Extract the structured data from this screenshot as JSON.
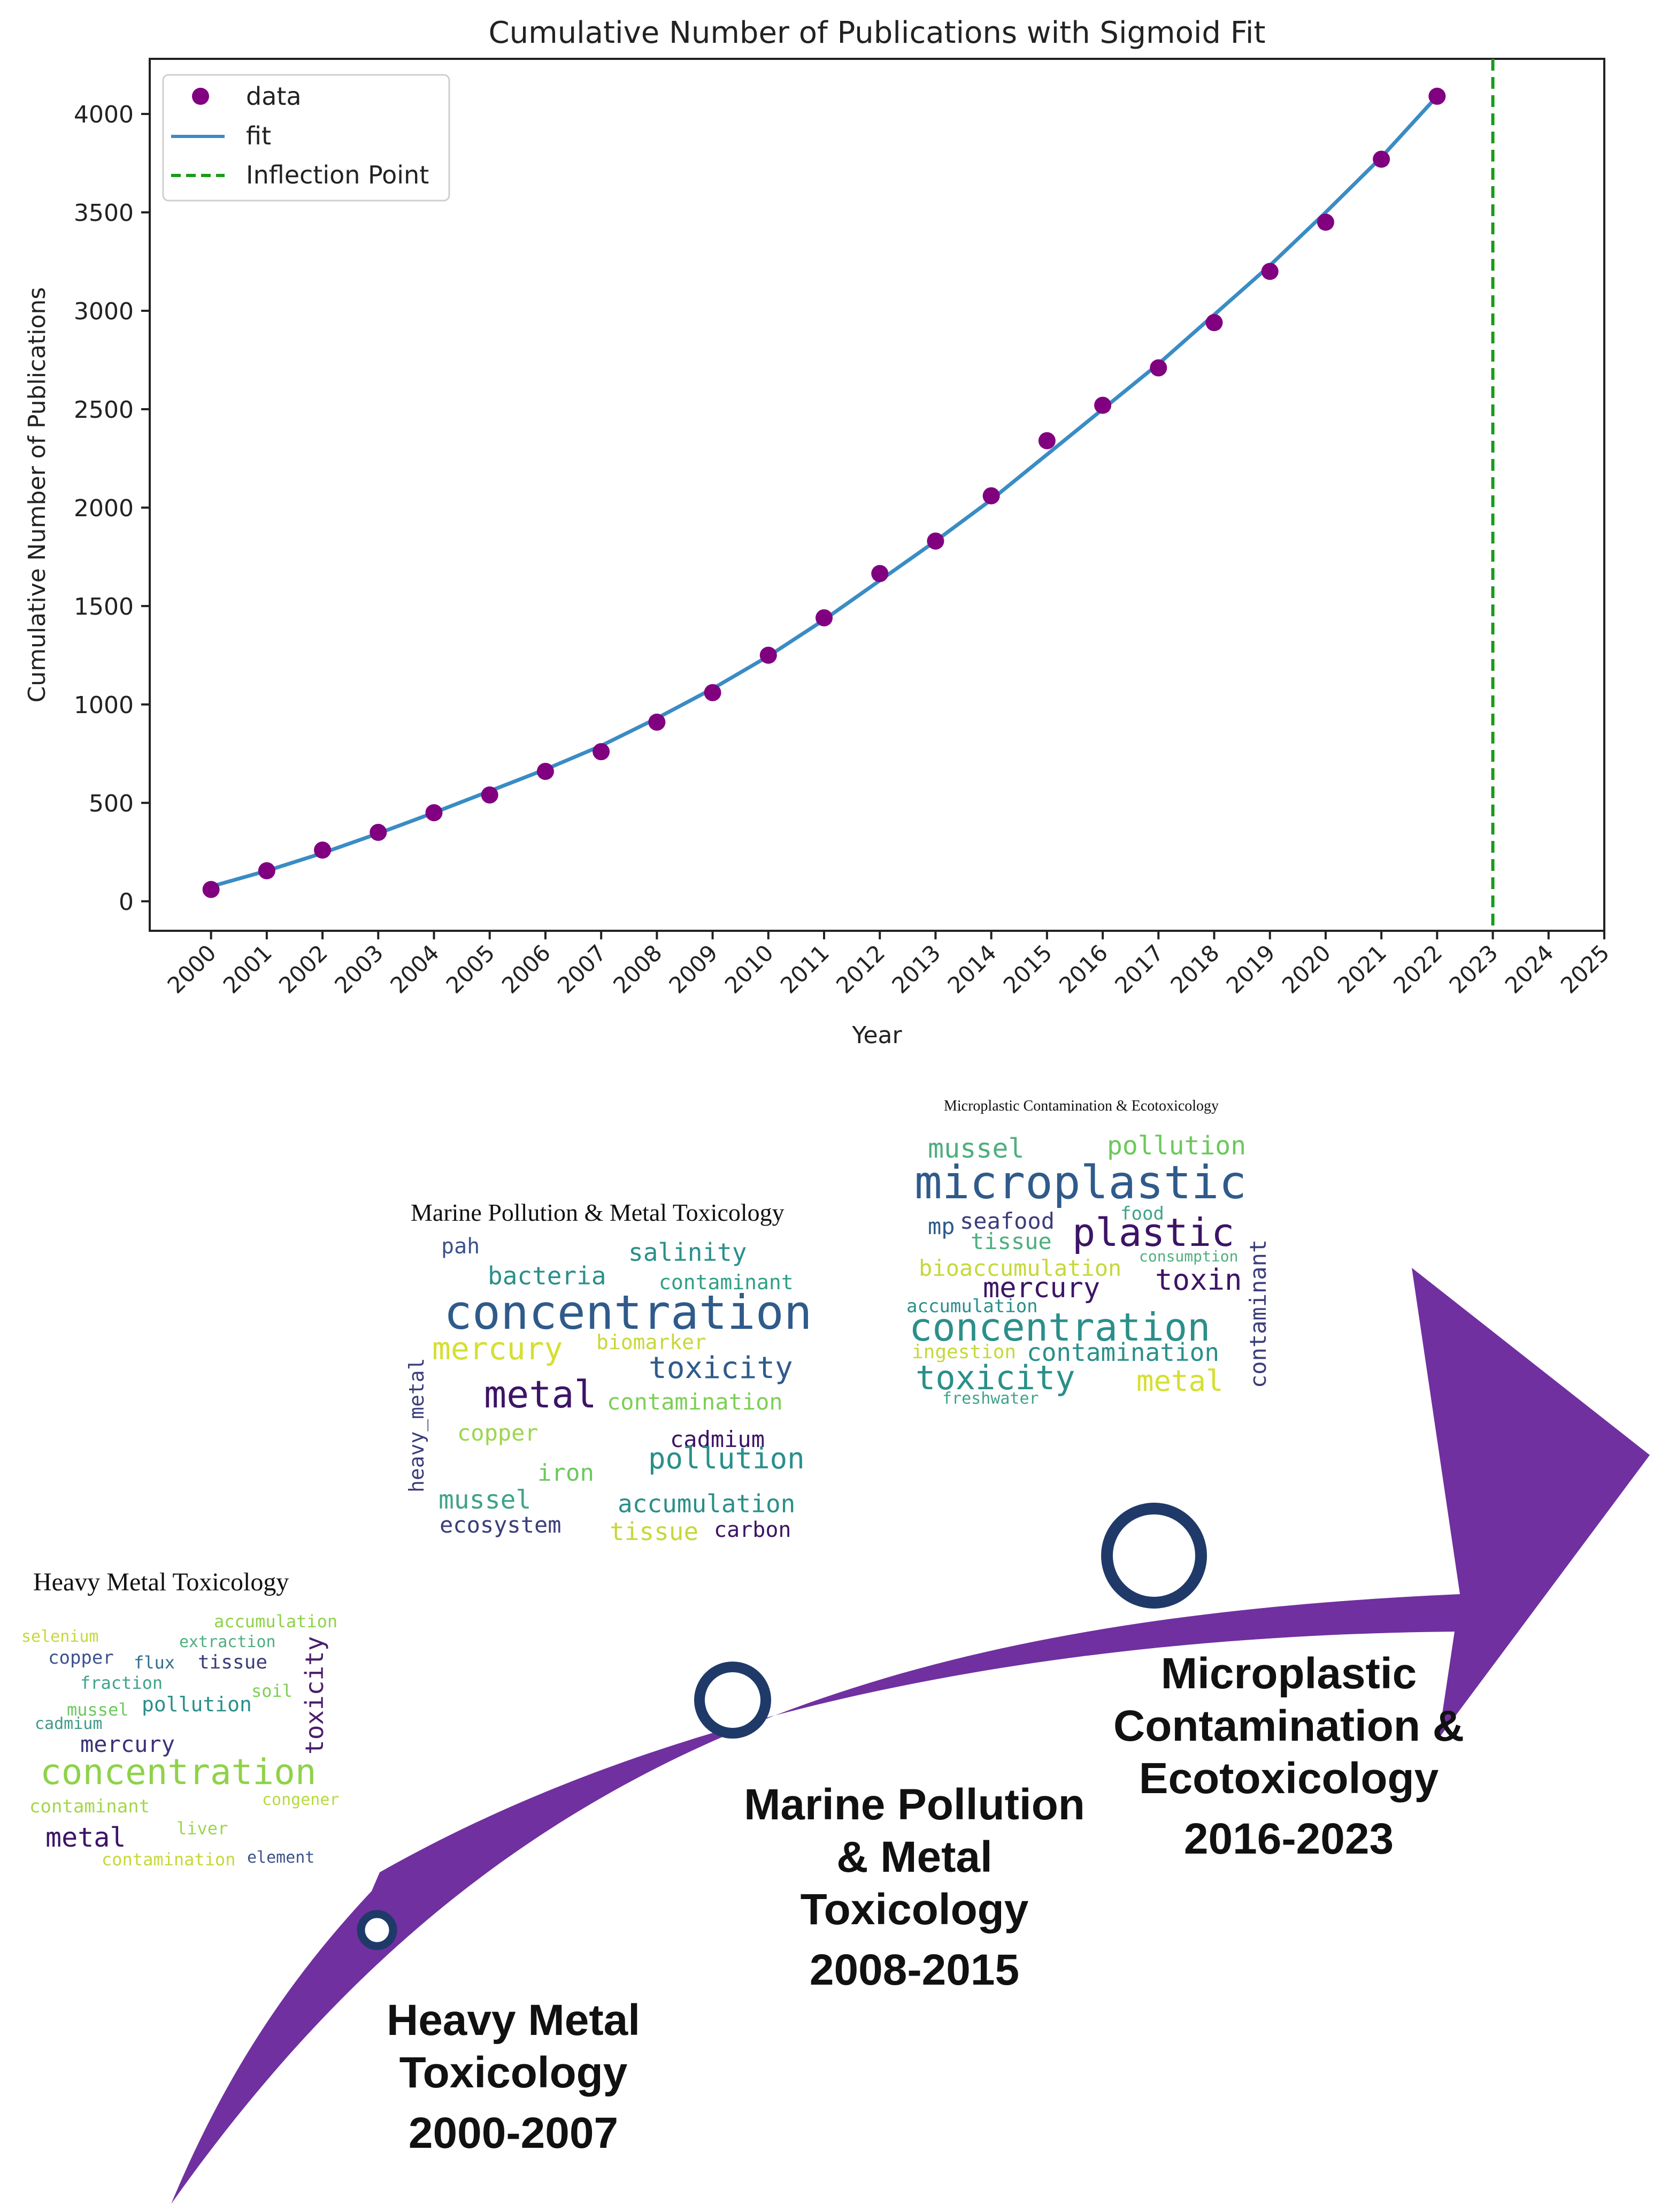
{
  "chart_data": {
    "type": "scatter",
    "title": "Cumulative Number of Publications with Sigmoid Fit",
    "xlabel": "Year",
    "ylabel": "Cumulative Number of Publications",
    "xlim": [
      1998.9,
      2025
    ],
    "ylim": [
      -150,
      4280
    ],
    "x_ticks": [
      2000,
      2001,
      2002,
      2003,
      2004,
      2005,
      2006,
      2007,
      2008,
      2009,
      2010,
      2011,
      2012,
      2013,
      2014,
      2015,
      2016,
      2017,
      2018,
      2019,
      2020,
      2021,
      2022,
      2023,
      2024,
      2025
    ],
    "y_ticks": [
      0,
      500,
      1000,
      1500,
      2000,
      2500,
      3000,
      3500,
      4000
    ],
    "grid": false,
    "legend_position": "top-left",
    "legend": [
      "data",
      "fit",
      "Inflection Point"
    ],
    "series": [
      {
        "name": "data",
        "kind": "points",
        "color": "#800080",
        "x": [
          2000,
          2001,
          2002,
          2003,
          2004,
          2005,
          2006,
          2007,
          2008,
          2009,
          2010,
          2011,
          2012,
          2013,
          2014,
          2015,
          2016,
          2017,
          2018,
          2019,
          2020,
          2021,
          2022
        ],
        "y": [
          60,
          155,
          260,
          350,
          450,
          540,
          660,
          760,
          910,
          1060,
          1250,
          1440,
          1665,
          1830,
          2060,
          2340,
          2520,
          2710,
          2940,
          3200,
          3450,
          3770,
          4090
        ]
      },
      {
        "name": "fit",
        "kind": "line",
        "color": "#3a8cc4",
        "x": [
          2000,
          2001,
          2002,
          2003,
          2004,
          2005,
          2006,
          2007,
          2008,
          2009,
          2010,
          2011,
          2012,
          2013,
          2014,
          2015,
          2016,
          2017,
          2018,
          2019,
          2020,
          2021,
          2022
        ],
        "y": [
          75,
          155,
          245,
          345,
          450,
          560,
          670,
          790,
          930,
          1080,
          1245,
          1430,
          1630,
          1830,
          2040,
          2270,
          2500,
          2730,
          2980,
          3230,
          3500,
          3780,
          4090
        ]
      },
      {
        "name": "Inflection Point",
        "kind": "vline",
        "color": "#1a9a1a",
        "x": 2023
      }
    ]
  },
  "timeline": {
    "arrow_color": "#7030a0",
    "node_ring_color": "#1f3a68",
    "stages": [
      {
        "title_lines": [
          "Heavy Metal",
          "Toxicology"
        ],
        "years": "2000-2007"
      },
      {
        "title_lines": [
          "Marine Pollution",
          "& Metal",
          "Toxicology"
        ],
        "years": "2008-2015"
      },
      {
        "title_lines": [
          "Microplastic",
          "Contamination &",
          "Ecotoxicology"
        ],
        "years": "2016-2023"
      }
    ]
  },
  "wordclouds": [
    {
      "title": "Heavy Metal Toxicology",
      "words": [
        "selenium",
        "accumulation",
        "extraction",
        "copper",
        "flux",
        "tissue",
        "fraction",
        "soil",
        "mussel",
        "pollution",
        "cadmium",
        "mercury",
        "toxicity",
        "concentration",
        "contaminant",
        "congener",
        "liver",
        "metal",
        "contamination",
        "element"
      ]
    },
    {
      "title": "Marine Pollution & Metal Toxicology",
      "words": [
        "pah",
        "salinity",
        "bacteria",
        "contaminant",
        "concentration",
        "biomarker",
        "mercury",
        "toxicity",
        "heavy_metal",
        "metal",
        "contamination",
        "copper",
        "cadmium",
        "pollution",
        "iron",
        "mussel",
        "accumulation",
        "ecosystem",
        "tissue",
        "carbon"
      ]
    },
    {
      "title": "Microplastic Contamination & Ecotoxicology",
      "words": [
        "mussel",
        "pollution",
        "microplastic",
        "mp",
        "seafood",
        "food",
        "tissue",
        "plastic",
        "consumption",
        "bioaccumulation",
        "mercury",
        "toxin",
        "accumulation",
        "contaminant",
        "concentration",
        "ingestion",
        "contamination",
        "toxicity",
        "metal",
        "freshwater"
      ]
    }
  ]
}
